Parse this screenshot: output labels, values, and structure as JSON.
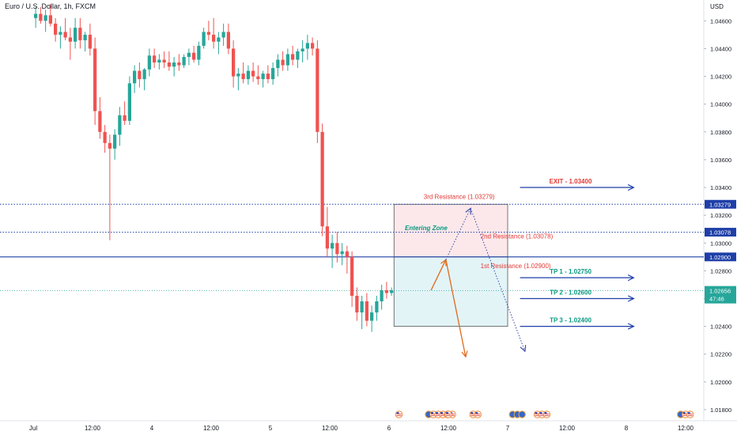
{
  "header": {
    "title": "Euro / U.S. Dollar, 1h, FXCM",
    "currency": "USD"
  },
  "colors": {
    "up": "#26a69a",
    "down": "#ef5350",
    "level_line": "#1e3fa8",
    "resistance_text": "#e53935",
    "tp_text": "#089981",
    "exit_text": "#e53935",
    "entry_zone_label": "#089981",
    "entry_box_upper": "#fce8ea",
    "entry_box_lower": "#e3f4f7",
    "arrow_orange": "#e06a1a",
    "arrow_blue_dotted": "#3949ab",
    "current_price_badge": "#26a69a"
  },
  "chart_data": {
    "type": "candlestick",
    "title": "Euro / U.S. Dollar, 1h, FXCM",
    "y_unit": "USD",
    "ylim": [
      1.0172,
      1.0475
    ],
    "y_ticks": [
      "1.04600",
      "1.04400",
      "1.04200",
      "1.04000",
      "1.03800",
      "1.03600",
      "1.03400",
      "1.03200",
      "1.03000",
      "1.02800",
      "1.02600",
      "1.02400",
      "1.02200",
      "1.02000",
      "1.01800"
    ],
    "x_ticks": [
      "Jul",
      "12:00",
      "4",
      "12:00",
      "5",
      "12:00",
      "6",
      "12:00",
      "7",
      "12:00",
      "8",
      "12:00"
    ],
    "x_tick_index": [
      0,
      12,
      24,
      36,
      48,
      60,
      72,
      84,
      96,
      108,
      120,
      132
    ],
    "candles": [
      [
        1.0462,
        1.047,
        1.0455,
        1.0465
      ],
      [
        1.0465,
        1.047,
        1.0458,
        1.046
      ],
      [
        1.046,
        1.0468,
        1.0452,
        1.0464
      ],
      [
        1.0464,
        1.0472,
        1.0456,
        1.0458
      ],
      [
        1.0458,
        1.0462,
        1.0445,
        1.045
      ],
      [
        1.045,
        1.0456,
        1.044,
        1.0452
      ],
      [
        1.0452,
        1.0462,
        1.0446,
        1.0448
      ],
      [
        1.0448,
        1.0455,
        1.0432,
        1.0445
      ],
      [
        1.0445,
        1.0462,
        1.044,
        1.0455
      ],
      [
        1.0455,
        1.0462,
        1.044,
        1.0446
      ],
      [
        1.0446,
        1.0452,
        1.0438,
        1.045
      ],
      [
        1.045,
        1.0458,
        1.0435,
        1.044
      ],
      [
        1.044,
        1.0448,
        1.0385,
        1.0395
      ],
      [
        1.0395,
        1.0405,
        1.0375,
        1.038
      ],
      [
        1.038,
        1.0385,
        1.0365,
        1.0372
      ],
      [
        1.0372,
        1.0378,
        1.0302,
        1.0368
      ],
      [
        1.0368,
        1.0382,
        1.036,
        1.0378
      ],
      [
        1.0378,
        1.0398,
        1.037,
        1.0392
      ],
      [
        1.0392,
        1.0402,
        1.0385,
        1.0388
      ],
      [
        1.0388,
        1.042,
        1.0385,
        1.0415
      ],
      [
        1.0415,
        1.0428,
        1.0408,
        1.0424
      ],
      [
        1.0424,
        1.043,
        1.0412,
        1.0418
      ],
      [
        1.0418,
        1.0426,
        1.041,
        1.0425
      ],
      [
        1.0425,
        1.044,
        1.042,
        1.0435
      ],
      [
        1.0435,
        1.044,
        1.0426,
        1.043
      ],
      [
        1.043,
        1.0436,
        1.0425,
        1.0432
      ],
      [
        1.0432,
        1.0438,
        1.0426,
        1.043
      ],
      [
        1.043,
        1.0438,
        1.0424,
        1.0427
      ],
      [
        1.0427,
        1.0434,
        1.042,
        1.043
      ],
      [
        1.043,
        1.0436,
        1.0424,
        1.0428
      ],
      [
        1.0428,
        1.0436,
        1.0426,
        1.0434
      ],
      [
        1.0434,
        1.044,
        1.0428,
        1.0437
      ],
      [
        1.0437,
        1.0442,
        1.043,
        1.0432
      ],
      [
        1.0432,
        1.0445,
        1.0428,
        1.0442
      ],
      [
        1.0442,
        1.0455,
        1.044,
        1.0452
      ],
      [
        1.0452,
        1.046,
        1.0446,
        1.045
      ],
      [
        1.045,
        1.0462,
        1.044,
        1.0445
      ],
      [
        1.0445,
        1.0452,
        1.0436,
        1.0448
      ],
      [
        1.0448,
        1.0458,
        1.0442,
        1.0452
      ],
      [
        1.0452,
        1.0458,
        1.0436,
        1.044
      ],
      [
        1.044,
        1.0446,
        1.0412,
        1.042
      ],
      [
        1.042,
        1.0426,
        1.041,
        1.0422
      ],
      [
        1.0422,
        1.043,
        1.0415,
        1.0418
      ],
      [
        1.0418,
        1.0428,
        1.0414,
        1.0424
      ],
      [
        1.0424,
        1.043,
        1.0416,
        1.042
      ],
      [
        1.042,
        1.0428,
        1.0414,
        1.0418
      ],
      [
        1.0418,
        1.0424,
        1.0412,
        1.0422
      ],
      [
        1.0422,
        1.0428,
        1.0415,
        1.0418
      ],
      [
        1.0418,
        1.043,
        1.0414,
        1.0426
      ],
      [
        1.0426,
        1.0436,
        1.042,
        1.0432
      ],
      [
        1.0432,
        1.0438,
        1.0424,
        1.0428
      ],
      [
        1.0428,
        1.044,
        1.0424,
        1.0436
      ],
      [
        1.0436,
        1.0442,
        1.0428,
        1.0432
      ],
      [
        1.0432,
        1.044,
        1.0426,
        1.0438
      ],
      [
        1.0438,
        1.0446,
        1.043,
        1.044
      ],
      [
        1.044,
        1.045,
        1.0432,
        1.0444
      ],
      [
        1.0444,
        1.0448,
        1.0435,
        1.044
      ],
      [
        1.044,
        1.0446,
        1.0372,
        1.038
      ],
      [
        1.038,
        1.0386,
        1.0305,
        1.0312
      ],
      [
        1.0312,
        1.0326,
        1.029,
        1.0296
      ],
      [
        1.0296,
        1.0306,
        1.0282,
        1.03
      ],
      [
        1.03,
        1.0308,
        1.0286,
        1.0292
      ],
      [
        1.0292,
        1.03,
        1.0284,
        1.0294
      ],
      [
        1.0294,
        1.0298,
        1.0278,
        1.029
      ],
      [
        1.029,
        1.0294,
        1.0254,
        1.0262
      ],
      [
        1.0262,
        1.0268,
        1.0244,
        1.025
      ],
      [
        1.025,
        1.0262,
        1.0238,
        1.0258
      ],
      [
        1.0258,
        1.0264,
        1.024,
        1.0244
      ],
      [
        1.0244,
        1.0255,
        1.0236,
        1.025
      ],
      [
        1.025,
        1.0262,
        1.0244,
        1.0258
      ],
      [
        1.0258,
        1.027,
        1.0252,
        1.0266
      ],
      [
        1.0266,
        1.0272,
        1.026,
        1.0264
      ],
      [
        1.0264,
        1.0268,
        1.0262,
        1.0266
      ]
    ],
    "current_price": "1.02656",
    "countdown": "47:46",
    "levels": [
      {
        "value": "1.03279",
        "style": "dotted"
      },
      {
        "value": "1.03078",
        "style": "dotted"
      },
      {
        "value": "1.02900",
        "style": "solid"
      }
    ],
    "entering_zone": {
      "label": "Entering Zone",
      "top": 1.03279,
      "mid": 1.029,
      "bottom": 1.024
    },
    "resistance_labels": [
      {
        "text": "3rd Resistance (1.03279)",
        "value": 1.03279
      },
      {
        "text": "2nd Resistance (1.03078)",
        "value": 1.03078
      },
      {
        "text": "1st Resistance (1.02900)",
        "value": 1.029
      }
    ],
    "targets": [
      {
        "text": "EXIT - 1.03400",
        "value": 1.034,
        "kind": "exit"
      },
      {
        "text": "TP 1 - 1.02750",
        "value": 1.0275,
        "kind": "tp"
      },
      {
        "text": "TP 2 - 1.02600",
        "value": 1.026,
        "kind": "tp"
      },
      {
        "text": "TP 3 - 1.02400",
        "value": 1.024,
        "kind": "tp"
      }
    ],
    "scenario_paths": [
      {
        "kind": "orange-solid",
        "points": [
          [
            80.5,
            1.0266
          ],
          [
            83.5,
            1.0288
          ],
          [
            87.5,
            1.0218
          ]
        ]
      },
      {
        "kind": "blue-dotted",
        "points": [
          [
            83.5,
            1.0288
          ],
          [
            88.5,
            1.0325
          ],
          [
            99.5,
            1.0222
          ]
        ]
      }
    ],
    "calendar_events": [
      {
        "index": 74,
        "flags": [
          "us"
        ]
      },
      {
        "index": 80,
        "flags": [
          "generic",
          "us",
          "us",
          "us",
          "us",
          "us"
        ]
      },
      {
        "index": 84,
        "flags": [
          "us"
        ]
      },
      {
        "index": 89,
        "flags": [
          "us",
          "us"
        ]
      },
      {
        "index": 97,
        "flags": [
          "generic",
          "generic",
          "generic"
        ]
      },
      {
        "index": 102,
        "flags": [
          "us",
          "us",
          "us"
        ]
      },
      {
        "index": 131,
        "flags": [
          "generic",
          "us",
          "us"
        ]
      }
    ]
  }
}
